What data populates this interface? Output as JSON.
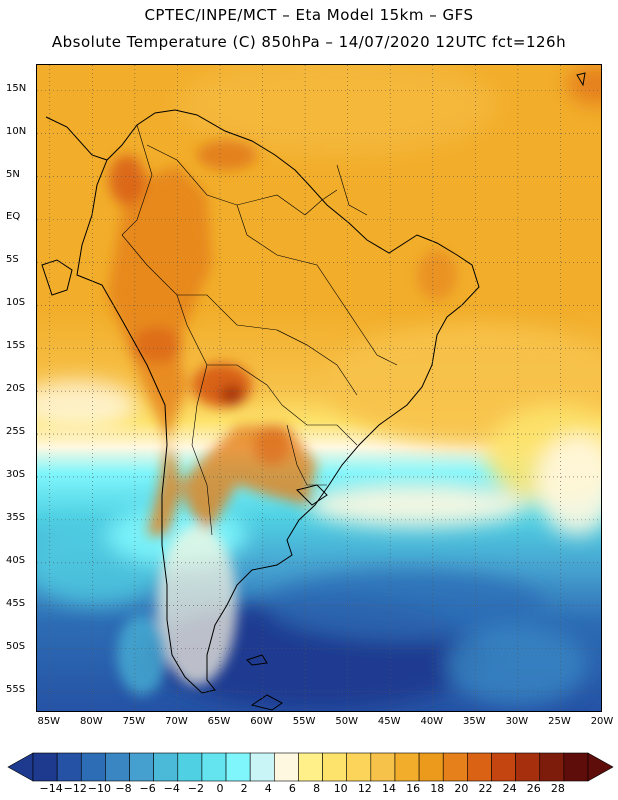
{
  "header": {
    "title_line1": "CPTEC/INPE/MCT –  Eta Model 15km – GFS",
    "title_line2": "Absolute Temperature (C) 850hPa – 14/07/2020 12UTC fct=126h"
  },
  "map": {
    "lat_labels": [
      "15N",
      "10N",
      "5N",
      "EQ",
      "5S",
      "10S",
      "15S",
      "20S",
      "25S",
      "30S",
      "35S",
      "40S",
      "45S",
      "50S",
      "55S"
    ],
    "lon_labels": [
      "85W",
      "80W",
      "75W",
      "70W",
      "65W",
      "60W",
      "55W",
      "50W",
      "45W",
      "40W",
      "35W",
      "30W",
      "25W",
      "20W"
    ],
    "lon_range_deg": [
      -86.5,
      -20
    ],
    "lat_range_deg": [
      -57.5,
      18
    ],
    "grid": "dotted",
    "field": "temperature_850hPa_celsius",
    "regions": [
      {
        "name": "tropical-ocean-and-land",
        "range_c": "16 to 20"
      },
      {
        "name": "central-south-america-hotspot",
        "range_c": "20 to 24"
      },
      {
        "name": "southern-ocean",
        "range_c": "-14 to 0"
      }
    ]
  },
  "colorbar": {
    "labels": [
      "-14",
      "-12",
      "-10",
      "-8",
      "-6",
      "-4",
      "-2",
      "0",
      "2",
      "4",
      "6",
      "8",
      "10",
      "12",
      "14",
      "16",
      "18",
      "20",
      "22",
      "24",
      "26",
      "28"
    ],
    "colors": [
      "#1e3a8f",
      "#2552a5",
      "#2d6db5",
      "#3a86c3",
      "#46a0cf",
      "#4bb9d8",
      "#4fd0e3",
      "#63e4ef",
      "#7ff6fc",
      "#c9f5f7",
      "#fff8e1",
      "#fff08a",
      "#fde36c",
      "#fbd459",
      "#f7c24a",
      "#f2ae2b",
      "#eb9a1c",
      "#e5801a",
      "#d96215",
      "#c44510",
      "#a6300d",
      "#7e1c0c",
      "#5e0d0a"
    ],
    "min_color": "#1e3a8f",
    "max_color": "#5e0d0a"
  }
}
